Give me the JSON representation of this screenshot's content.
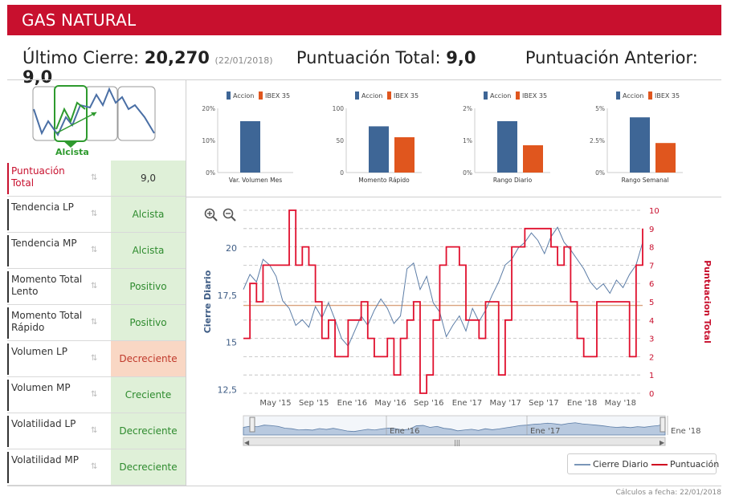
{
  "header": {
    "title": "GAS NATURAL"
  },
  "summary": {
    "close_label": "Último Cierre:",
    "close_value": "20,270",
    "close_date": "(22/01/2018)",
    "score_label": "Puntuación Total:",
    "score_value": "9,0",
    "prev_label": "Puntuación Anterior:",
    "prev_value": "9,0"
  },
  "trend": {
    "label": "Alcista"
  },
  "indicators": [
    {
      "label": "Puntuación Total",
      "value": "9,0"
    },
    {
      "label": "Tendencia LP",
      "value": "Alcista"
    },
    {
      "label": "Tendencia MP",
      "value": "Alcista"
    },
    {
      "label": "Momento Total Lento",
      "value": "Positivo"
    },
    {
      "label": "Momento Total Rápido",
      "value": "Positivo"
    },
    {
      "label": "Volumen LP",
      "value": "Decreciente"
    },
    {
      "label": "Volumen MP",
      "value": "Creciente"
    },
    {
      "label": "Volatilidad LP",
      "value": "Decreciente"
    },
    {
      "label": "Volatilidad MP",
      "value": "Decreciente"
    }
  ],
  "icons": {
    "sort": "sort-icon",
    "zoom_in": "zoom-in-icon",
    "zoom_out": "zoom-out-icon"
  },
  "colors": {
    "accent": "#c8102e",
    "accion": "#3e6696",
    "ibex": "#e0561e",
    "positive_bg": "#dff0d8",
    "negative_bg": "#f9d7c4"
  },
  "chart_data": [
    {
      "type": "bar",
      "title": "Var. Volumen Mes",
      "legend": [
        "Accion",
        "IBEX 35"
      ],
      "yticks": [
        "20%",
        "10%",
        "0%"
      ],
      "ylim": [
        0,
        20
      ],
      "values": [
        16,
        0
      ]
    },
    {
      "type": "bar",
      "title": "Momento Rápido",
      "legend": [
        "Accion",
        "IBEX 35"
      ],
      "yticks": [
        "100",
        "50",
        "0"
      ],
      "ylim": [
        0,
        100
      ],
      "values": [
        72,
        55
      ]
    },
    {
      "type": "bar",
      "title": "Rango Diario",
      "legend": [
        "Accion",
        "IBEX 35"
      ],
      "yticks": [
        "2%",
        "1%",
        "0%"
      ],
      "ylim": [
        0,
        2
      ],
      "values": [
        1.6,
        0.85
      ]
    },
    {
      "type": "bar",
      "title": "Rango Semanal",
      "legend": [
        "Accion",
        "IBEX 35"
      ],
      "yticks": [
        "5%",
        "2.5%",
        "0%"
      ],
      "ylim": [
        0,
        5
      ],
      "values": [
        4.3,
        2.3
      ]
    },
    {
      "type": "line",
      "title": "",
      "ylabel": "Cierre Diario",
      "y2label": "Puntuacion Total",
      "yticks": [
        "20",
        "17,5",
        "15",
        "12,5"
      ],
      "y2ticks": [
        "10",
        "9",
        "8",
        "7",
        "6",
        "5",
        "4",
        "3",
        "2",
        "1",
        "0"
      ],
      "ylim": [
        12.3,
        22
      ],
      "y2lim": [
        0,
        10
      ],
      "xticks": [
        "May '15",
        "Sep '15",
        "Ene '16",
        "May '16",
        "Sep '16",
        "Ene '17",
        "May '17",
        "Sep '17",
        "Ene '18",
        "May '18"
      ],
      "navigator_ticks": [
        "Ene '16",
        "Ene '17",
        "Ene '18"
      ],
      "legend": [
        "Cierre Diario",
        "Puntuación"
      ],
      "baseline": 4.8,
      "series": [
        {
          "name": "Cierre Diario",
          "values": [
            17.8,
            18.6,
            18.2,
            19.4,
            19.1,
            18.5,
            17.2,
            16.8,
            15.9,
            16.2,
            15.8,
            16.9,
            16.3,
            17.1,
            16.2,
            15.2,
            14.8,
            15.6,
            16.4,
            15.9,
            16.7,
            17.3,
            16.8,
            16.0,
            16.4,
            18.9,
            19.2,
            17.8,
            18.5,
            17.1,
            16.6,
            15.3,
            15.9,
            16.4,
            15.6,
            16.8,
            16.1,
            16.7,
            17.5,
            18.2,
            19.1,
            19.4,
            20.0,
            20.3,
            20.8,
            20.4,
            19.7,
            20.6,
            21.1,
            20.3,
            19.9,
            19.4,
            18.9,
            18.2,
            17.8,
            18.1,
            17.6,
            18.3,
            17.9,
            18.6,
            19.1,
            20.3
          ]
        },
        {
          "name": "Puntuación",
          "values": [
            3,
            6,
            5,
            7,
            7,
            7,
            7,
            10,
            7,
            8,
            7,
            5,
            3,
            4,
            2,
            2,
            4,
            4,
            5,
            3,
            2,
            2,
            3,
            1,
            3,
            4,
            5,
            0,
            1,
            4,
            7,
            8,
            8,
            7,
            4,
            4,
            3,
            5,
            5,
            1,
            4,
            8,
            8,
            9,
            9,
            9,
            9,
            8,
            7,
            8,
            5,
            3,
            2,
            2,
            5,
            5,
            5,
            5,
            5,
            2,
            7,
            9
          ]
        }
      ]
    }
  ],
  "footer": {
    "note": "Cálculos a fecha: 22/01/2018"
  }
}
